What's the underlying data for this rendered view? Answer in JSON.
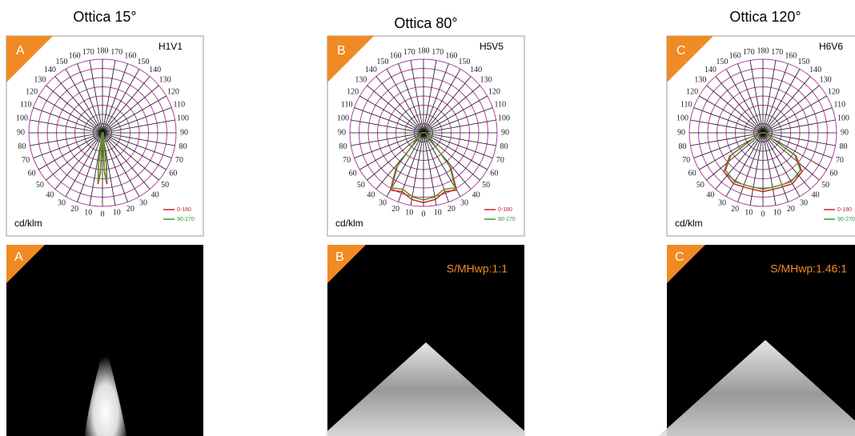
{
  "panels": [
    {
      "title": "Ottica 15°",
      "diagram": {
        "letter": "A",
        "code": "H1V1",
        "unit": "cd/klm",
        "legend": [
          "0-180",
          "90-270"
        ],
        "angles": [
          "0",
          "10",
          "20",
          "30",
          "40",
          "50",
          "60",
          "70",
          "80",
          "90",
          "100",
          "110",
          "120",
          "130",
          "140",
          "150",
          "160",
          "170",
          "180"
        ]
      },
      "photo": {
        "letter": "A"
      }
    },
    {
      "title": "Ottica 80°",
      "diagram": {
        "letter": "B",
        "code": "H5V5",
        "unit": "cd/klm",
        "legend": [
          "0-180",
          "90-270"
        ],
        "angles": [
          "0",
          "10",
          "20",
          "30",
          "40",
          "50",
          "60",
          "70",
          "80",
          "90",
          "100",
          "110",
          "120",
          "130",
          "140",
          "150",
          "160",
          "170",
          "180"
        ]
      },
      "photo": {
        "letter": "B",
        "ratio": "S/MHwp:1:1"
      }
    },
    {
      "title": "Ottica 120°",
      "diagram": {
        "letter": "C",
        "code": "H6V6",
        "unit": "cd/klm",
        "legend": [
          "0-180",
          "90-270"
        ],
        "angles": [
          "0",
          "10",
          "20",
          "30",
          "40",
          "50",
          "60",
          "70",
          "80",
          "90",
          "100",
          "110",
          "120",
          "130",
          "140",
          "150",
          "160",
          "170",
          "180"
        ]
      },
      "photo": {
        "letter": "C",
        "ratio": "S/MHwp:1.46:1"
      }
    }
  ]
}
